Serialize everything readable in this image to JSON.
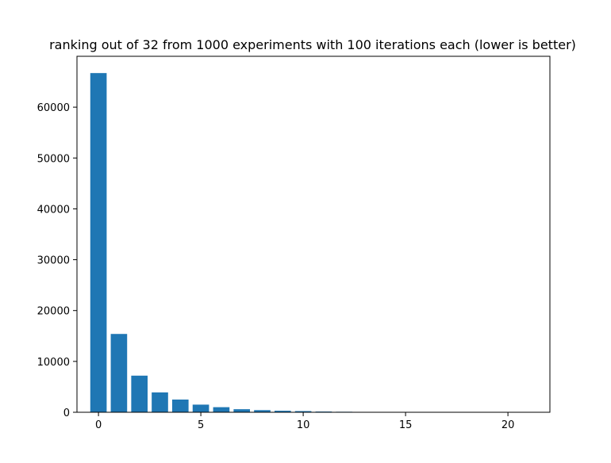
{
  "chart_data": {
    "type": "bar",
    "title": "ranking out of 32 from 1000 experiments with 100 iterations each (lower is better)",
    "xlabel": "",
    "ylabel": "",
    "x": [
      0,
      1,
      2,
      3,
      4,
      5,
      6,
      7,
      8,
      9,
      10,
      11,
      12,
      13,
      14,
      15,
      16,
      17,
      18,
      19,
      20,
      21
    ],
    "values": [
      66700,
      15400,
      7200,
      3900,
      2500,
      1500,
      1000,
      600,
      420,
      300,
      230,
      140,
      100,
      70,
      40,
      25,
      15,
      10,
      8,
      5,
      3,
      2
    ],
    "xlim": [
      -1.05,
      22.05
    ],
    "ylim": [
      0,
      70000
    ],
    "xticks": [
      0,
      5,
      10,
      15,
      20
    ],
    "xtick_labels": [
      "0",
      "5",
      "10",
      "15",
      "20"
    ],
    "yticks": [
      0,
      10000,
      20000,
      30000,
      40000,
      50000,
      60000
    ],
    "ytick_labels": [
      "0",
      "10000",
      "20000",
      "30000",
      "40000",
      "50000",
      "60000"
    ],
    "grid": false,
    "legend": "none",
    "bar_color": "#1f77b4"
  }
}
